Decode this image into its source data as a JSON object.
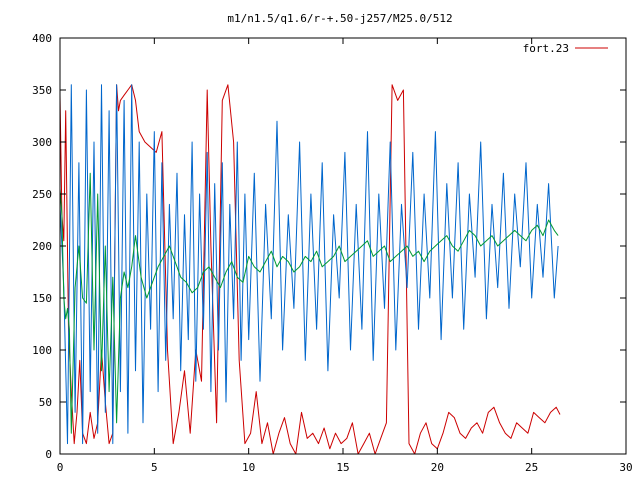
{
  "chart_data": {
    "type": "line",
    "title": "m1/n1.5/q1.6/r-+.50-j257/M25.0/512",
    "xlabel": "",
    "ylabel": "",
    "xlim": [
      0,
      30
    ],
    "ylim": [
      0,
      400
    ],
    "x_ticks": [
      "0",
      "5",
      "10",
      "15",
      "20",
      "25",
      "30"
    ],
    "y_ticks": [
      "0",
      "50",
      "100",
      "150",
      "200",
      "250",
      "300",
      "350",
      "400"
    ],
    "grid": false,
    "legend_position": "top-right",
    "series": [
      {
        "name": "fort.23",
        "color": "#cc0000",
        "x": [
          0.0,
          0.1,
          0.2,
          0.3,
          0.45,
          0.6,
          0.75,
          0.9,
          1.05,
          1.2,
          1.4,
          1.6,
          1.8,
          2.0,
          2.2,
          2.4,
          2.6,
          2.8,
          3.0,
          3.1,
          3.2,
          3.4,
          3.6,
          3.8,
          4.0,
          4.2,
          4.5,
          4.8,
          5.1,
          5.4,
          5.7,
          6.0,
          6.3,
          6.6,
          6.9,
          7.2,
          7.5,
          7.8,
          8.0,
          8.3,
          8.6,
          8.9,
          9.2,
          9.5,
          9.8,
          10.1,
          10.4,
          10.7,
          11.0,
          11.3,
          11.6,
          11.9,
          12.2,
          12.5,
          12.8,
          13.1,
          13.4,
          13.7,
          14.0,
          14.3,
          14.6,
          14.9,
          15.2,
          15.5,
          15.8,
          16.1,
          16.4,
          16.7,
          17.0,
          17.3,
          17.6,
          17.9,
          18.2,
          18.5,
          18.8,
          19.1,
          19.4,
          19.7,
          20.0,
          20.3,
          20.6,
          20.9,
          21.2,
          21.5,
          21.8,
          22.1,
          22.4,
          22.7,
          23.0,
          23.3,
          23.6,
          23.9,
          24.2,
          24.5,
          24.8,
          25.1,
          25.4,
          25.7,
          26.0,
          26.3,
          26.5
        ],
        "y": [
          345,
          230,
          205,
          330,
          120,
          60,
          10,
          40,
          90,
          20,
          10,
          40,
          15,
          30,
          100,
          50,
          10,
          20,
          355,
          330,
          340,
          345,
          350,
          355,
          340,
          310,
          300,
          295,
          290,
          310,
          100,
          10,
          40,
          80,
          20,
          100,
          70,
          350,
          200,
          30,
          340,
          355,
          300,
          90,
          10,
          20,
          60,
          10,
          30,
          0,
          20,
          35,
          10,
          0,
          40,
          15,
          20,
          10,
          25,
          5,
          20,
          10,
          15,
          30,
          0,
          10,
          20,
          0,
          15,
          30,
          355,
          340,
          350,
          10,
          0,
          20,
          30,
          10,
          5,
          20,
          40,
          35,
          20,
          15,
          25,
          30,
          20,
          40,
          45,
          30,
          20,
          15,
          30,
          25,
          20,
          40,
          35,
          30,
          40,
          45,
          38
        ]
      },
      {
        "name": "",
        "color": "#0066cc",
        "x": [
          0.0,
          0.2,
          0.4,
          0.6,
          0.8,
          1.0,
          1.2,
          1.4,
          1.6,
          1.8,
          2.0,
          2.2,
          2.4,
          2.6,
          2.8,
          3.0,
          3.2,
          3.4,
          3.6,
          3.8,
          4.0,
          4.2,
          4.4,
          4.6,
          4.8,
          5.0,
          5.2,
          5.4,
          5.6,
          5.8,
          6.0,
          6.2,
          6.4,
          6.6,
          6.8,
          7.0,
          7.2,
          7.4,
          7.6,
          7.8,
          8.0,
          8.2,
          8.4,
          8.6,
          8.8,
          9.0,
          9.2,
          9.4,
          9.6,
          9.8,
          10.0,
          10.3,
          10.6,
          10.9,
          11.2,
          11.5,
          11.8,
          12.1,
          12.4,
          12.7,
          13.0,
          13.3,
          13.6,
          13.9,
          14.2,
          14.5,
          14.8,
          15.1,
          15.4,
          15.7,
          16.0,
          16.3,
          16.6,
          16.9,
          17.2,
          17.5,
          17.8,
          18.1,
          18.4,
          18.7,
          19.0,
          19.3,
          19.6,
          19.9,
          20.2,
          20.5,
          20.8,
          21.1,
          21.4,
          21.7,
          22.0,
          22.3,
          22.6,
          22.9,
          23.2,
          23.5,
          23.8,
          24.1,
          24.4,
          24.7,
          25.0,
          25.3,
          25.6,
          25.9,
          26.2,
          26.4
        ],
        "y": [
          240,
          160,
          10,
          355,
          40,
          280,
          10,
          350,
          60,
          300,
          20,
          355,
          40,
          330,
          10,
          355,
          60,
          340,
          20,
          355,
          80,
          300,
          30,
          250,
          120,
          310,
          60,
          280,
          90,
          240,
          130,
          270,
          80,
          230,
          110,
          300,
          70,
          250,
          120,
          290,
          60,
          260,
          100,
          280,
          50,
          240,
          130,
          300,
          90,
          250,
          110,
          270,
          70,
          240,
          130,
          320,
          100,
          230,
          140,
          300,
          90,
          250,
          120,
          280,
          80,
          230,
          150,
          290,
          100,
          240,
          120,
          310,
          90,
          250,
          140,
          300,
          100,
          240,
          160,
          290,
          120,
          250,
          150,
          310,
          110,
          260,
          150,
          280,
          120,
          250,
          170,
          300,
          130,
          240,
          160,
          270,
          140,
          250,
          180,
          280,
          150,
          240,
          170,
          260,
          150,
          200
        ]
      },
      {
        "name": "",
        "color": "#009933",
        "x": [
          0.0,
          0.1,
          0.2,
          0.3,
          0.4,
          0.5,
          0.6,
          0.8,
          1.0,
          1.2,
          1.4,
          1.6,
          1.8,
          2.0,
          2.2,
          2.4,
          2.6,
          2.8,
          3.0,
          3.2,
          3.4,
          3.6,
          3.8,
          4.0,
          4.3,
          4.6,
          4.9,
          5.2,
          5.5,
          5.8,
          6.1,
          6.4,
          6.7,
          7.0,
          7.3,
          7.6,
          7.9,
          8.2,
          8.5,
          8.8,
          9.1,
          9.4,
          9.7,
          10.0,
          10.3,
          10.6,
          10.9,
          11.2,
          11.5,
          11.8,
          12.1,
          12.4,
          12.7,
          13.0,
          13.3,
          13.6,
          13.9,
          14.2,
          14.5,
          14.8,
          15.1,
          15.4,
          15.7,
          16.0,
          16.3,
          16.6,
          16.9,
          17.2,
          17.5,
          17.8,
          18.1,
          18.4,
          18.7,
          19.0,
          19.3,
          19.6,
          19.9,
          20.2,
          20.5,
          20.8,
          21.1,
          21.4,
          21.7,
          22.0,
          22.3,
          22.6,
          22.9,
          23.2,
          23.5,
          23.8,
          24.1,
          24.4,
          24.7,
          25.0,
          25.3,
          25.6,
          25.9,
          26.2,
          26.4
        ],
        "y": [
          255,
          230,
          150,
          130,
          140,
          120,
          20,
          160,
          200,
          150,
          145,
          270,
          100,
          250,
          80,
          200,
          60,
          170,
          30,
          150,
          175,
          160,
          180,
          210,
          170,
          150,
          165,
          180,
          190,
          200,
          185,
          170,
          165,
          155,
          160,
          175,
          180,
          170,
          160,
          175,
          185,
          170,
          165,
          190,
          180,
          175,
          185,
          195,
          180,
          190,
          185,
          175,
          180,
          190,
          185,
          195,
          180,
          185,
          190,
          200,
          185,
          190,
          195,
          200,
          205,
          190,
          195,
          200,
          185,
          190,
          195,
          200,
          190,
          195,
          185,
          195,
          200,
          205,
          210,
          200,
          195,
          205,
          215,
          210,
          200,
          205,
          210,
          200,
          205,
          210,
          215,
          210,
          205,
          215,
          220,
          210,
          225,
          215,
          210
        ]
      }
    ]
  }
}
